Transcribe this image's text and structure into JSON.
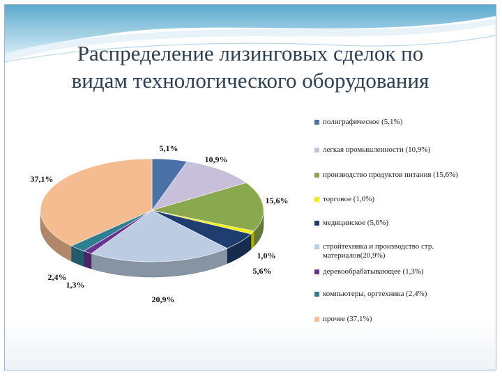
{
  "slide": {
    "title_line1": "Распределение лизинговых сделок по",
    "title_line2": "видам технологического оборудования"
  },
  "chart_data": {
    "type": "pie",
    "title": "Распределение лизинговых сделок по видам технологического оборудования",
    "categories": [
      "полиграфическое (5,1%)",
      "легкая промышленности (10,9%)",
      "производство продуктов питания (15,6%)",
      "торговое (1,0%)",
      "медицинское (5,6%)",
      "стройтехника и производство стр. материалов(20,9%)",
      "деревообрабатывающее (1,3%)",
      "компьютеры, оргтехника (2,4%)",
      "прочее (37,1%)"
    ],
    "values": [
      5.1,
      10.9,
      15.6,
      1.0,
      5.6,
      20.9,
      1.3,
      2.4,
      37.1
    ],
    "data_labels": [
      "5,1%",
      "10,9%",
      "15,6%",
      "1,0%",
      "5,6%",
      "20,9%",
      "1,3%",
      "2,4%",
      "37,1%"
    ],
    "legend_placement": "right",
    "colors": [
      "#4a72a8",
      "#c8c0da",
      "#8aa84e",
      "#f2f200",
      "#1f3d6e",
      "#bccde3",
      "#6a3391",
      "#2f7f92",
      "#f4bc8f"
    ]
  }
}
